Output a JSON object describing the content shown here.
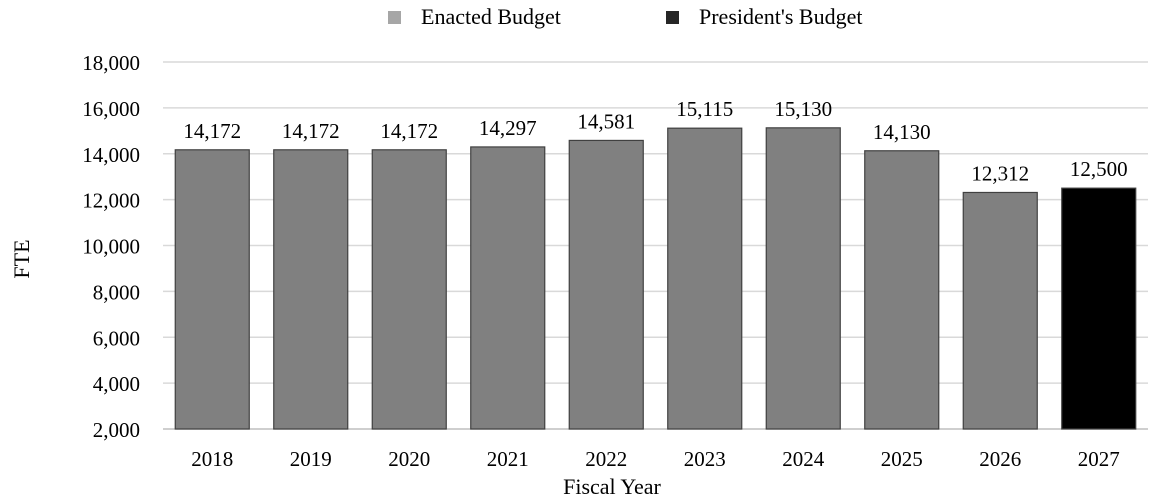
{
  "chart_data": {
    "type": "bar",
    "categories": [
      "2018",
      "2019",
      "2020",
      "2021",
      "2022",
      "2023",
      "2024",
      "2025",
      "2026",
      "2027"
    ],
    "values": [
      14172,
      14172,
      14172,
      14297,
      14581,
      15115,
      15130,
      14130,
      12312,
      12500
    ],
    "value_labels": [
      "14,172",
      "14,172",
      "14,172",
      "14,297",
      "14,581",
      "15,115",
      "15,130",
      "14,130",
      "12,312",
      "12,500"
    ],
    "bar_series": [
      "Enacted Budget",
      "Enacted Budget",
      "Enacted Budget",
      "Enacted Budget",
      "Enacted Budget",
      "Enacted Budget",
      "Enacted Budget",
      "Enacted Budget",
      "Enacted Budget",
      "President's Budget"
    ],
    "series": [
      {
        "name": "Enacted Budget",
        "color": "#808080",
        "legend_color": "#a6a6a6"
      },
      {
        "name": "President's Budget",
        "color": "#000000",
        "legend_color": "#262626"
      }
    ],
    "title": "",
    "xlabel": "Fiscal Year",
    "ylabel": "FTE",
    "ylim": [
      2000,
      18000
    ],
    "yticks": [
      2000,
      4000,
      6000,
      8000,
      10000,
      12000,
      14000,
      16000,
      18000
    ],
    "ytick_labels": [
      "2,000",
      "4,000",
      "6,000",
      "8,000",
      "10,000",
      "12,000",
      "14,000",
      "16,000",
      "18,000"
    ],
    "grid": true,
    "legend_position": "top-center"
  }
}
